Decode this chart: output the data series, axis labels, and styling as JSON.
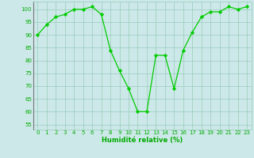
{
  "x": [
    0,
    1,
    2,
    3,
    4,
    5,
    6,
    7,
    8,
    9,
    10,
    11,
    12,
    13,
    14,
    15,
    16,
    17,
    18,
    19,
    20,
    21,
    22,
    23
  ],
  "y": [
    90,
    94,
    97,
    98,
    100,
    100,
    101,
    98,
    84,
    76,
    69,
    60,
    60,
    82,
    82,
    69,
    84,
    91,
    97,
    99,
    99,
    101,
    100,
    101
  ],
  "line_color": "#00cc00",
  "marker": "D",
  "markersize": 2.2,
  "linewidth": 0.9,
  "background_color": "#cce8e8",
  "grid_color": "#99ccbb",
  "xlabel": "Humidité relative (%)",
  "xlabel_color": "#00aa00",
  "xlabel_fontsize": 6.0,
  "tick_color": "#00aa00",
  "tick_fontsize": 5.0,
  "ylabel_ticks": [
    55,
    60,
    65,
    70,
    75,
    80,
    85,
    90,
    95,
    100
  ],
  "xlim": [
    -0.5,
    23.5
  ],
  "ylim": [
    53,
    103
  ]
}
